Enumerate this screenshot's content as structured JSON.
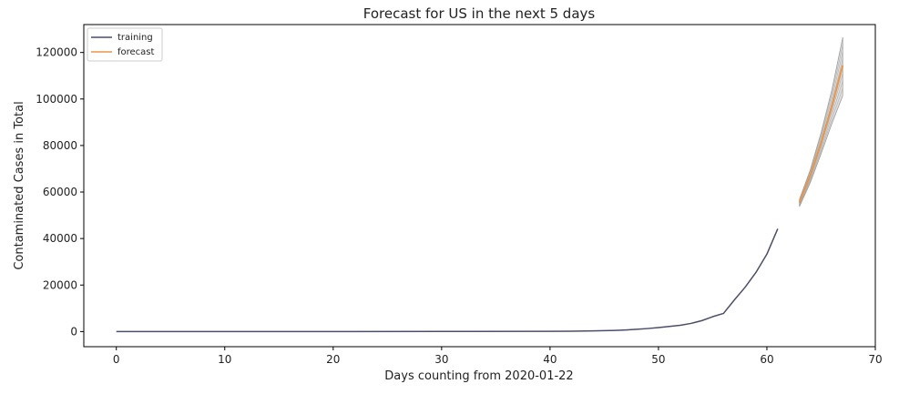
{
  "chart_data": {
    "type": "line",
    "title": "Forecast for US in the next 5 days",
    "xlabel": "Days counting from 2020-01-22",
    "ylabel": "Contaminated Cases in Total",
    "xlim": [
      -3,
      70
    ],
    "ylim": [
      -6500,
      132000
    ],
    "x_ticks": [
      0,
      10,
      20,
      30,
      40,
      50,
      60,
      70
    ],
    "x_tick_labels": [
      "0",
      "10",
      "20",
      "30",
      "40",
      "50",
      "60",
      "70"
    ],
    "y_ticks": [
      0,
      20000,
      40000,
      60000,
      80000,
      100000,
      120000
    ],
    "y_tick_labels": [
      "0",
      "20000",
      "40000",
      "60000",
      "80000",
      "100000",
      "120000"
    ],
    "grid": false,
    "legend_position": "top-left",
    "series": [
      {
        "name": "training",
        "color": "#4a4e69",
        "x": [
          0,
          10,
          20,
          30,
          40,
          42,
          44,
          46,
          47,
          48,
          49,
          50,
          51,
          52,
          53,
          54,
          55,
          56,
          57,
          58,
          59,
          60,
          61
        ],
        "y": [
          1,
          11,
          15,
          60,
          100,
          150,
          300,
          500,
          700,
          1000,
          1300,
          1700,
          2200,
          2700,
          3500,
          4700,
          6400,
          7800,
          13600,
          19100,
          25500,
          33300,
          44200
        ]
      },
      {
        "name": "forecast",
        "color": "#e8964c",
        "x": [
          63,
          64,
          65,
          66,
          67
        ],
        "y": [
          55500,
          67000,
          81000,
          97000,
          114500
        ]
      }
    ],
    "forecast_band": {
      "color": "#a8a8a8",
      "x": [
        63,
        64,
        65,
        66,
        67
      ],
      "lower": [
        53700,
        64000,
        76500,
        89500,
        101500
      ],
      "upper": [
        56800,
        69500,
        85500,
        104000,
        126500
      ]
    }
  }
}
